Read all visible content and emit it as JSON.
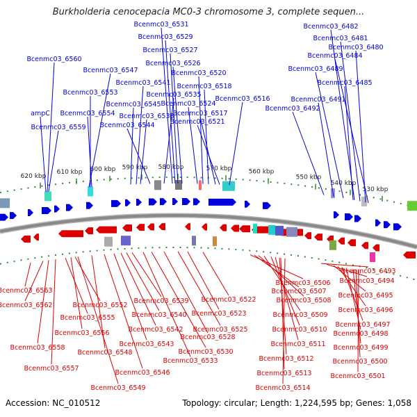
{
  "title": "Burkholderia cenocepacia MC0-3 chromosome 3, complete sequen...",
  "footer": {
    "accession": "Accession: NC_010512",
    "summary": "Topology: circular; Length: 1,224,595 bp; Genes: 1,058"
  },
  "colors": {
    "forward": "#0000dd",
    "reverse": "#dd0000",
    "backbone": "#888888",
    "tick": "#2e8b2e"
  },
  "scale_ticks": [
    {
      "label": "620 kbp"
    },
    {
      "label": "610 kbp"
    },
    {
      "label": "600 kbp"
    },
    {
      "label": "590 kbp"
    },
    {
      "label": "580 kbp"
    },
    {
      "label": "570 kbp"
    },
    {
      "label": "560 kbp"
    },
    {
      "label": "550 kbp"
    },
    {
      "label": "540 kbp"
    },
    {
      "label": "530 kbp"
    }
  ],
  "forward_genes": [
    "Bcenmc03_6560",
    "ampC",
    "Bcenmc03_6559",
    "Bcenmc03_6547",
    "Bcenmc03_6553",
    "Bcenmc03_6554",
    "Bcenmc03_6541",
    "Bcenmc03_6545",
    "Bcenmc03_6535",
    "Bcenmc03_6538",
    "Bcenmc03_6544",
    "Bcenmc03_6531",
    "Bcenmc03_6529",
    "Bcenmc03_6527",
    "Bcenmc03_6526",
    "Bcenmc03_6520",
    "Bcenmc03_6518",
    "Bcenmc03_6524",
    "Bcenmc03_6517",
    "Bcenmc03_6521",
    "Bcenmc03_6516",
    "Bcenmc03_6482",
    "Bcenmc03_6481",
    "Bcenmc03_6480",
    "Bcenmc03_6484",
    "Bcenmc03_6489",
    "Bcenmc03_6485",
    "Bcenmc03_6491",
    "Bcenmc03_6492"
  ],
  "reverse_genes": [
    "Bcenmc03_6563",
    "Bcenmc03_6562",
    "Bcenmc03_6555",
    "Bcenmc03_6552",
    "Bcenmc03_6556",
    "Bcenmc03_6558",
    "Bcenmc03_6557",
    "Bcenmc03_6548",
    "Bcenmc03_6549",
    "Bcenmc03_6546",
    "Bcenmc03_6543",
    "Bcenmc03_6542",
    "Bcenmc03_6540",
    "Bcenmc03_6539",
    "Bcenmc03_6530",
    "Bcenmc03_6533",
    "Bcenmc03_6528",
    "Bcenmc03_6525",
    "Bcenmc03_6523",
    "Bcenmc03_6522",
    "Bcenmc03_6506",
    "Bcenmc03_6507",
    "Bcenmc03_6508",
    "Bcenmc03_6509",
    "Bcenmc03_6510",
    "Bcenmc03_6511",
    "Bcenmc03_6512",
    "Bcenmc03_6513",
    "Bcenmc03_6514",
    "Bcenmc03_6493",
    "Bcenmc03_6494",
    "Bcenmc03_6495",
    "Bcenmc03_6496",
    "Bcenmc03_6497",
    "Bcenmc03_6498",
    "Bcenmc03_6499",
    "Bcenmc03_6500",
    "Bcenmc03_6501"
  ]
}
